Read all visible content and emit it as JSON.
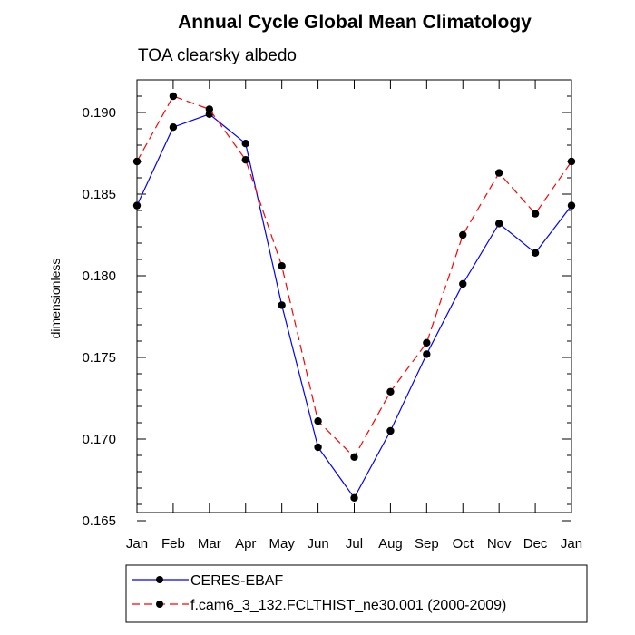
{
  "chart_data": {
    "type": "line",
    "title": "Annual Cycle Global Mean Climatology",
    "subtitle": "TOA clearsky albedo",
    "xlabel": "",
    "ylabel": "dimensionless",
    "categories": [
      "Jan",
      "Feb",
      "Mar",
      "Apr",
      "May",
      "Jun",
      "Jul",
      "Aug",
      "Sep",
      "Oct",
      "Nov",
      "Dec",
      "Jan"
    ],
    "ylim": [
      0.1655,
      0.192
    ],
    "yticks": [
      "0.165",
      "0.170",
      "0.175",
      "0.180",
      "0.185",
      "0.190"
    ],
    "grid": false,
    "legend_position": "bottom",
    "series": [
      {
        "name": "CERES-EBAF",
        "color": "#0000ff",
        "line_style": "solid",
        "marker": "filled-circle",
        "values": [
          0.1843,
          0.1891,
          0.1899,
          0.1881,
          0.1782,
          0.1695,
          0.1664,
          0.1705,
          0.1752,
          0.1795,
          0.1832,
          0.1814,
          0.1843
        ]
      },
      {
        "name": "f.cam6_3_132.FCLTHIST_ne30.001 (2000-2009)",
        "color": "#ff0000",
        "line_style": "dashed",
        "marker": "filled-circle",
        "values": [
          0.187,
          0.191,
          0.1902,
          0.1871,
          0.1806,
          0.1711,
          0.1689,
          0.1729,
          0.1759,
          0.1825,
          0.1863,
          0.1838,
          0.187
        ]
      }
    ]
  }
}
